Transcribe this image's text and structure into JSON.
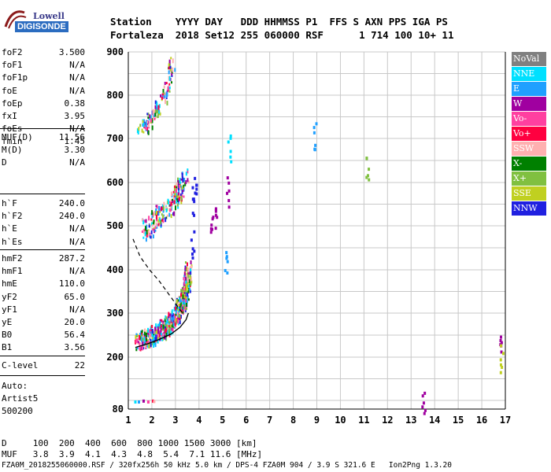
{
  "logo": {
    "line1": "Lowell",
    "line2": "DIGISONDE"
  },
  "header": {
    "line1": "Station    YYYY DAY   DDD HHMMSS P1  FFS S AXN PPS IGA PS",
    "line2": "Fortaleza  2018 Set12 255 060000 RSF      1 714 100 10+ 11"
  },
  "params_group1": [
    {
      "k": "foF2",
      "v": "3.500"
    },
    {
      "k": "foF1",
      "v": "N/A"
    },
    {
      "k": "foF1p",
      "v": "N/A"
    },
    {
      "k": "foE",
      "v": "N/A"
    },
    {
      "k": "foEp",
      "v": "0.38"
    },
    {
      "k": "fxI",
      "v": "3.95"
    },
    {
      "k": "foEs",
      "v": "N/A"
    },
    {
      "k": "fmin",
      "v": "1.45"
    }
  ],
  "params_group2": [
    {
      "k": "MUF(D)",
      "v": "11.56"
    },
    {
      "k": "M(D)",
      "v": "3.30"
    },
    {
      "k": "D",
      "v": "N/A"
    }
  ],
  "params_group3": [
    {
      "k": "h`F",
      "v": "240.0"
    },
    {
      "k": "h`F2",
      "v": "240.0"
    },
    {
      "k": "h`E",
      "v": "N/A"
    },
    {
      "k": "h`Es",
      "v": "N/A"
    }
  ],
  "params_group4": [
    {
      "k": "hmF2",
      "v": "287.2"
    },
    {
      "k": "hmF1",
      "v": "N/A"
    },
    {
      "k": "hmE",
      "v": "110.0"
    },
    {
      "k": "yF2",
      "v": "65.0"
    },
    {
      "k": "yF1",
      "v": "N/A"
    },
    {
      "k": "yE",
      "v": "20.0"
    },
    {
      "k": "B0",
      "v": "56.4"
    },
    {
      "k": "B1",
      "v": "3.56"
    }
  ],
  "params_group5": [
    {
      "k": "C-level",
      "v": "22"
    }
  ],
  "auto": {
    "l1": "Auto:",
    "l2": "Artist5",
    "l3": "500200"
  },
  "footer": {
    "d_row": "D     100  200  400  600  800 1000 1500 3000 [km]",
    "muf_row": "MUF   3.8  3.9  4.1  4.3  4.8  5.4  7.1 11.6 [MHz]",
    "info": "FZA0M_2018255060000.RSF / 320fx256h 50 kHz 5.0 km / DPS-4 FZA0M 904 / 3.9 S 321.6 E   Ion2Png 1.3.20"
  },
  "legend": [
    {
      "label": "NoVal",
      "color": "#808080"
    },
    {
      "label": "NNE",
      "color": "#00e0ff"
    },
    {
      "label": "E",
      "color": "#20a0ff"
    },
    {
      "label": "W",
      "color": "#a000a0"
    },
    {
      "label": "Vo-",
      "color": "#ff40a0"
    },
    {
      "label": "Vo+",
      "color": "#ff0040"
    },
    {
      "label": "SSW",
      "color": "#ffb0b0"
    },
    {
      "label": "X-",
      "color": "#008000"
    },
    {
      "label": "X+",
      "color": "#80c040"
    },
    {
      "label": "SSE",
      "color": "#c0d020"
    },
    {
      "label": "NNW",
      "color": "#2020e0"
    }
  ],
  "chart_data": {
    "type": "scatter",
    "xlim": [
      1,
      17
    ],
    "ylim": [
      80,
      900
    ],
    "x_ticks": [
      "1",
      "2",
      "3",
      "4",
      "5",
      "6",
      "7",
      "8",
      "9",
      "10",
      "11",
      "12",
      "13",
      "14",
      "15",
      "16",
      "17"
    ],
    "y_ticks": [
      "80",
      "200",
      "300",
      "400",
      "500",
      "600",
      "700",
      "800",
      "900"
    ],
    "grid": true,
    "trace_1hop": {
      "x": [
        1.4,
        1.7,
        2.0,
        2.3,
        2.6,
        2.9,
        3.1,
        3.3,
        3.45,
        3.55
      ],
      "y": [
        240,
        245,
        252,
        262,
        272,
        288,
        305,
        330,
        365,
        410
      ]
    },
    "trace_2hop": {
      "x": [
        1.6,
        1.9,
        2.2,
        2.5,
        2.8,
        3.0,
        3.2,
        3.4
      ],
      "y": [
        488,
        505,
        520,
        535,
        552,
        570,
        590,
        620
      ]
    },
    "trace_3hop": {
      "x": [
        1.5,
        1.8,
        2.1,
        2.4,
        2.7,
        2.9
      ],
      "y": [
        725,
        740,
        760,
        790,
        830,
        880
      ]
    },
    "low_echoes": {
      "x": [
        1.25,
        1.4,
        1.6,
        1.8,
        2.0,
        2.05
      ],
      "y": [
        100,
        100,
        102,
        100,
        102,
        101
      ]
    },
    "high_freq_points": [
      {
        "x": 3.7,
        "y": 460,
        "c": "NNW"
      },
      {
        "x": 3.75,
        "y": 560,
        "c": "NNW"
      },
      {
        "x": 3.8,
        "y": 610,
        "c": "NNW"
      },
      {
        "x": 4.5,
        "y": 495,
        "c": "W"
      },
      {
        "x": 4.7,
        "y": 520,
        "c": "W"
      },
      {
        "x": 5.2,
        "y": 580,
        "c": "W"
      },
      {
        "x": 5.1,
        "y": 420,
        "c": "E"
      },
      {
        "x": 5.25,
        "y": 675,
        "c": "NNE"
      },
      {
        "x": 8.9,
        "y": 708,
        "c": "E"
      },
      {
        "x": 11.1,
        "y": 640,
        "c": "X+"
      },
      {
        "x": 13.5,
        "y": 101,
        "c": "W"
      },
      {
        "x": 16.8,
        "y": 230,
        "c": "W"
      },
      {
        "x": 16.8,
        "y": 200,
        "c": "SSE"
      }
    ],
    "profile_curve": {
      "x": [
        1.3,
        1.8,
        2.3,
        2.8,
        3.2,
        3.45,
        3.55
      ],
      "y": [
        222,
        230,
        240,
        252,
        268,
        285,
        300
      ]
    },
    "dashed_curve": {
      "x": [
        1.2,
        1.5,
        1.9,
        2.3,
        2.7,
        3.1,
        3.3
      ],
      "y": [
        470,
        430,
        400,
        375,
        345,
        315,
        300
      ]
    }
  }
}
